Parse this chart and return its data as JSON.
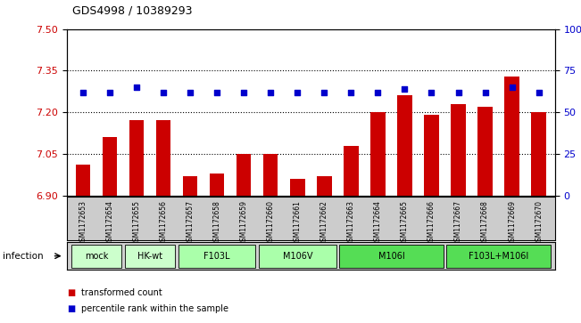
{
  "title": "GDS4998 / 10389293",
  "samples": [
    "GSM1172653",
    "GSM1172654",
    "GSM1172655",
    "GSM1172656",
    "GSM1172657",
    "GSM1172658",
    "GSM1172659",
    "GSM1172660",
    "GSM1172661",
    "GSM1172662",
    "GSM1172663",
    "GSM1172664",
    "GSM1172665",
    "GSM1172666",
    "GSM1172667",
    "GSM1172668",
    "GSM1172669",
    "GSM1172670"
  ],
  "bar_values": [
    7.01,
    7.11,
    7.17,
    7.17,
    6.97,
    6.98,
    7.05,
    7.05,
    6.96,
    6.97,
    7.08,
    7.2,
    7.26,
    7.19,
    7.23,
    7.22,
    7.33,
    7.2
  ],
  "dot_values": [
    62,
    62,
    65,
    62,
    62,
    62,
    62,
    62,
    62,
    62,
    62,
    62,
    64,
    62,
    62,
    62,
    65,
    62
  ],
  "groups": [
    {
      "label": "mock",
      "start": 0,
      "end": 2,
      "color": "#ccffcc"
    },
    {
      "label": "HK-wt",
      "start": 2,
      "end": 4,
      "color": "#ccffcc"
    },
    {
      "label": "F103L",
      "start": 4,
      "end": 7,
      "color": "#aaffaa"
    },
    {
      "label": "M106V",
      "start": 7,
      "end": 10,
      "color": "#aaffaa"
    },
    {
      "label": "M106I",
      "start": 10,
      "end": 14,
      "color": "#55dd55"
    },
    {
      "label": "F103L+M106I",
      "start": 14,
      "end": 18,
      "color": "#55dd55"
    }
  ],
  "ylim_left": [
    6.9,
    7.5
  ],
  "ylim_right": [
    0,
    100
  ],
  "yticks_left": [
    6.9,
    7.05,
    7.2,
    7.35,
    7.5
  ],
  "yticks_right": [
    0,
    25,
    50,
    75,
    100
  ],
  "bar_color": "#cc0000",
  "dot_color": "#0000cc",
  "background_color": "#ffffff",
  "infection_label": "infection",
  "legend_bar": "transformed count",
  "legend_dot": "percentile rank within the sample"
}
